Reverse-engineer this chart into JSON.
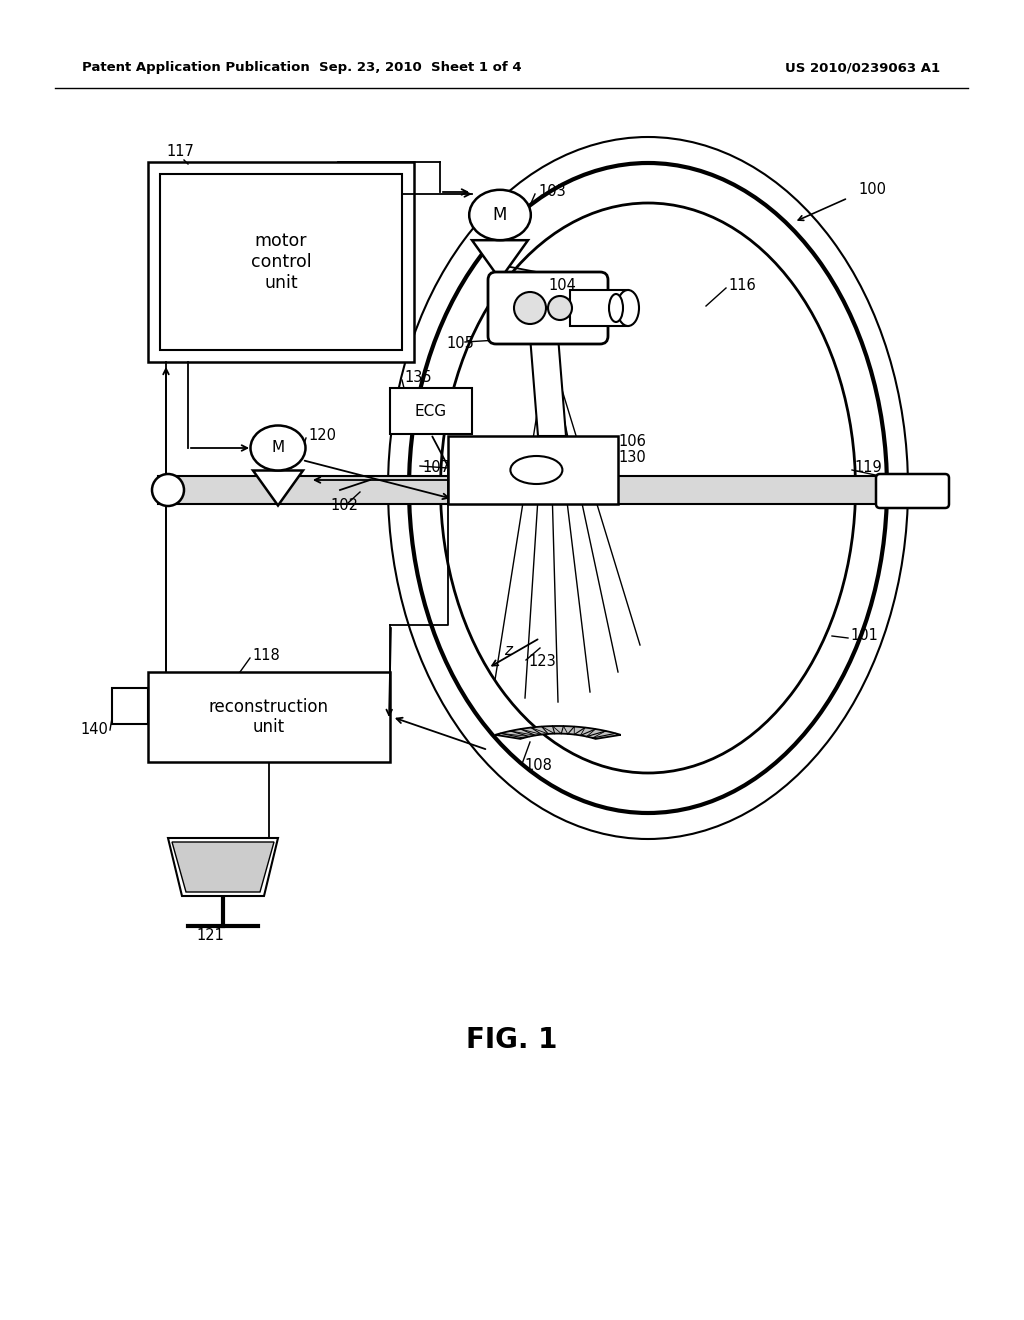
{
  "bg_color": "#ffffff",
  "header_left": "Patent Application Publication",
  "header_mid": "Sep. 23, 2010  Sheet 1 of 4",
  "header_right": "US 2010/0239063 A1",
  "fig_title": "FIG. 1",
  "motor_control_text": "motor\ncontrol\nunit",
  "recon_text": "reconstruction\nunit",
  "ecg_text": "ECG",
  "note_102": "102",
  "note_107": "107"
}
